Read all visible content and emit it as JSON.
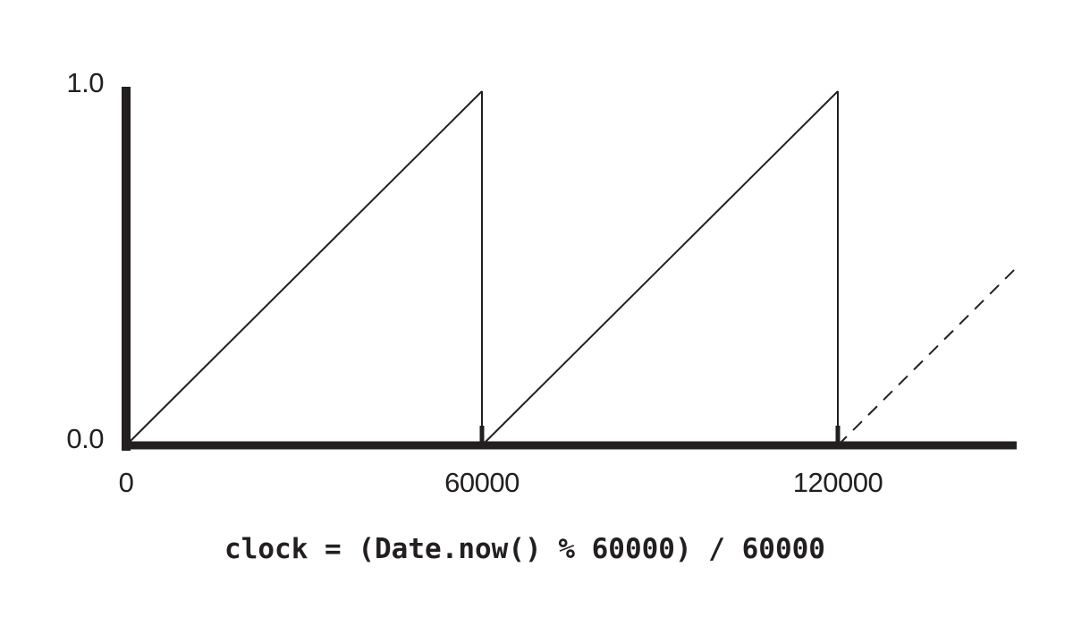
{
  "chart_data": {
    "type": "line",
    "title": "",
    "xlabel": "",
    "ylabel": "",
    "xlim": [
      0,
      150000
    ],
    "ylim": [
      0,
      1
    ],
    "x_ticks": [
      "0",
      "60000",
      "120000"
    ],
    "y_ticks": [
      "0.0",
      "1.0"
    ],
    "series": [
      {
        "style": "solid",
        "x": [
          0,
          60000,
          60000,
          120000,
          120000
        ],
        "y": [
          0,
          1,
          0,
          1,
          0
        ]
      },
      {
        "style": "dashed",
        "x": [
          120000,
          150000
        ],
        "y": [
          0,
          0.5
        ]
      }
    ],
    "annotation": "clock = (Date.now() % 60000) / 60000",
    "colors": {
      "ink": "#231f20",
      "background": "#ffffff"
    }
  }
}
